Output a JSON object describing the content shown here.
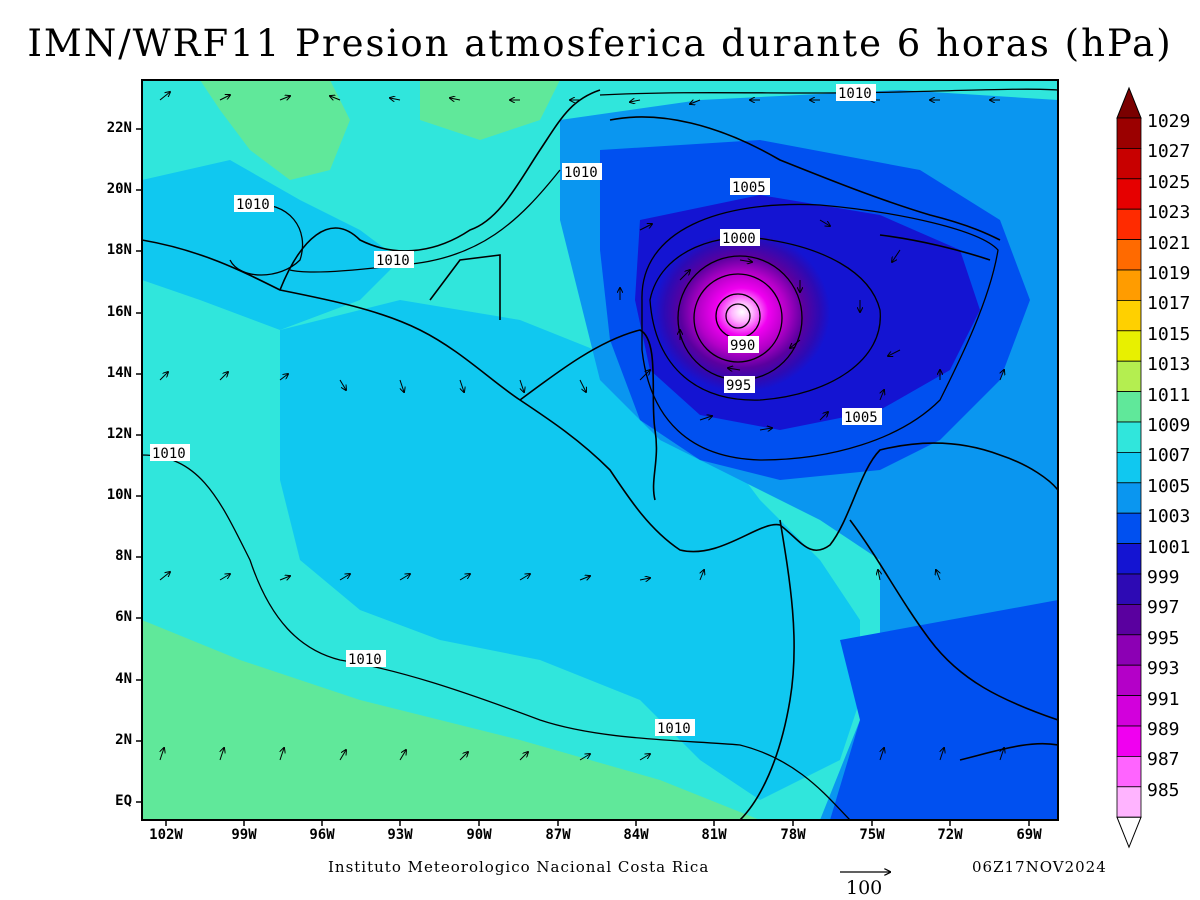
{
  "title": "IMN/WRF11 Presion atmosferica durante 6 horas (hPa)",
  "footer": {
    "institution": "Instituto Meteorologico Nacional Costa Rica",
    "valid_time": "06Z17NOV2024",
    "vector_reference": "100"
  },
  "map": {
    "lat_labels": [
      "22N",
      "20N",
      "18N",
      "16N",
      "14N",
      "12N",
      "10N",
      "8N",
      "6N",
      "4N",
      "2N",
      "EQ"
    ],
    "lon_labels": [
      "102W",
      "99W",
      "96W",
      "93W",
      "90W",
      "87W",
      "84W",
      "81W",
      "78W",
      "75W",
      "72W",
      "69W"
    ],
    "contour_labels": [
      {
        "id": "c1",
        "text": "1010"
      },
      {
        "id": "c2",
        "text": "1010"
      },
      {
        "id": "c3",
        "text": "1010"
      },
      {
        "id": "c4",
        "text": "1010"
      },
      {
        "id": "c5",
        "text": "1005"
      },
      {
        "id": "c6",
        "text": "1000"
      },
      {
        "id": "c7",
        "text": "990"
      },
      {
        "id": "c8",
        "text": "995"
      },
      {
        "id": "c9",
        "text": "1005"
      },
      {
        "id": "c10",
        "text": "1010"
      },
      {
        "id": "c11",
        "text": "1010"
      },
      {
        "id": "c12",
        "text": "1010"
      }
    ],
    "low_pressure_center": {
      "lat": 16.3,
      "lon": -80.2,
      "min_contour_label": "990"
    }
  },
  "colorbar": {
    "levels": [
      "1029",
      "1027",
      "1025",
      "1023",
      "1021",
      "1019",
      "1017",
      "1015",
      "1013",
      "1011",
      "1009",
      "1007",
      "1005",
      "1003",
      "1001",
      "999",
      "997",
      "995",
      "993",
      "991",
      "989",
      "987",
      "985"
    ],
    "colors": [
      "#9b0000",
      "#c80000",
      "#e60000",
      "#ff2b00",
      "#ff6a00",
      "#ff9c00",
      "#ffd000",
      "#e8f000",
      "#b4ee50",
      "#60e89a",
      "#30e6dc",
      "#10c8f0",
      "#0a96f0",
      "#0050f0",
      "#1414d2",
      "#2d0ab4",
      "#5a009f",
      "#8c00b4",
      "#b400c8",
      "#d200dc",
      "#f000f0",
      "#ff64ff",
      "#ffb4ff"
    ]
  }
}
